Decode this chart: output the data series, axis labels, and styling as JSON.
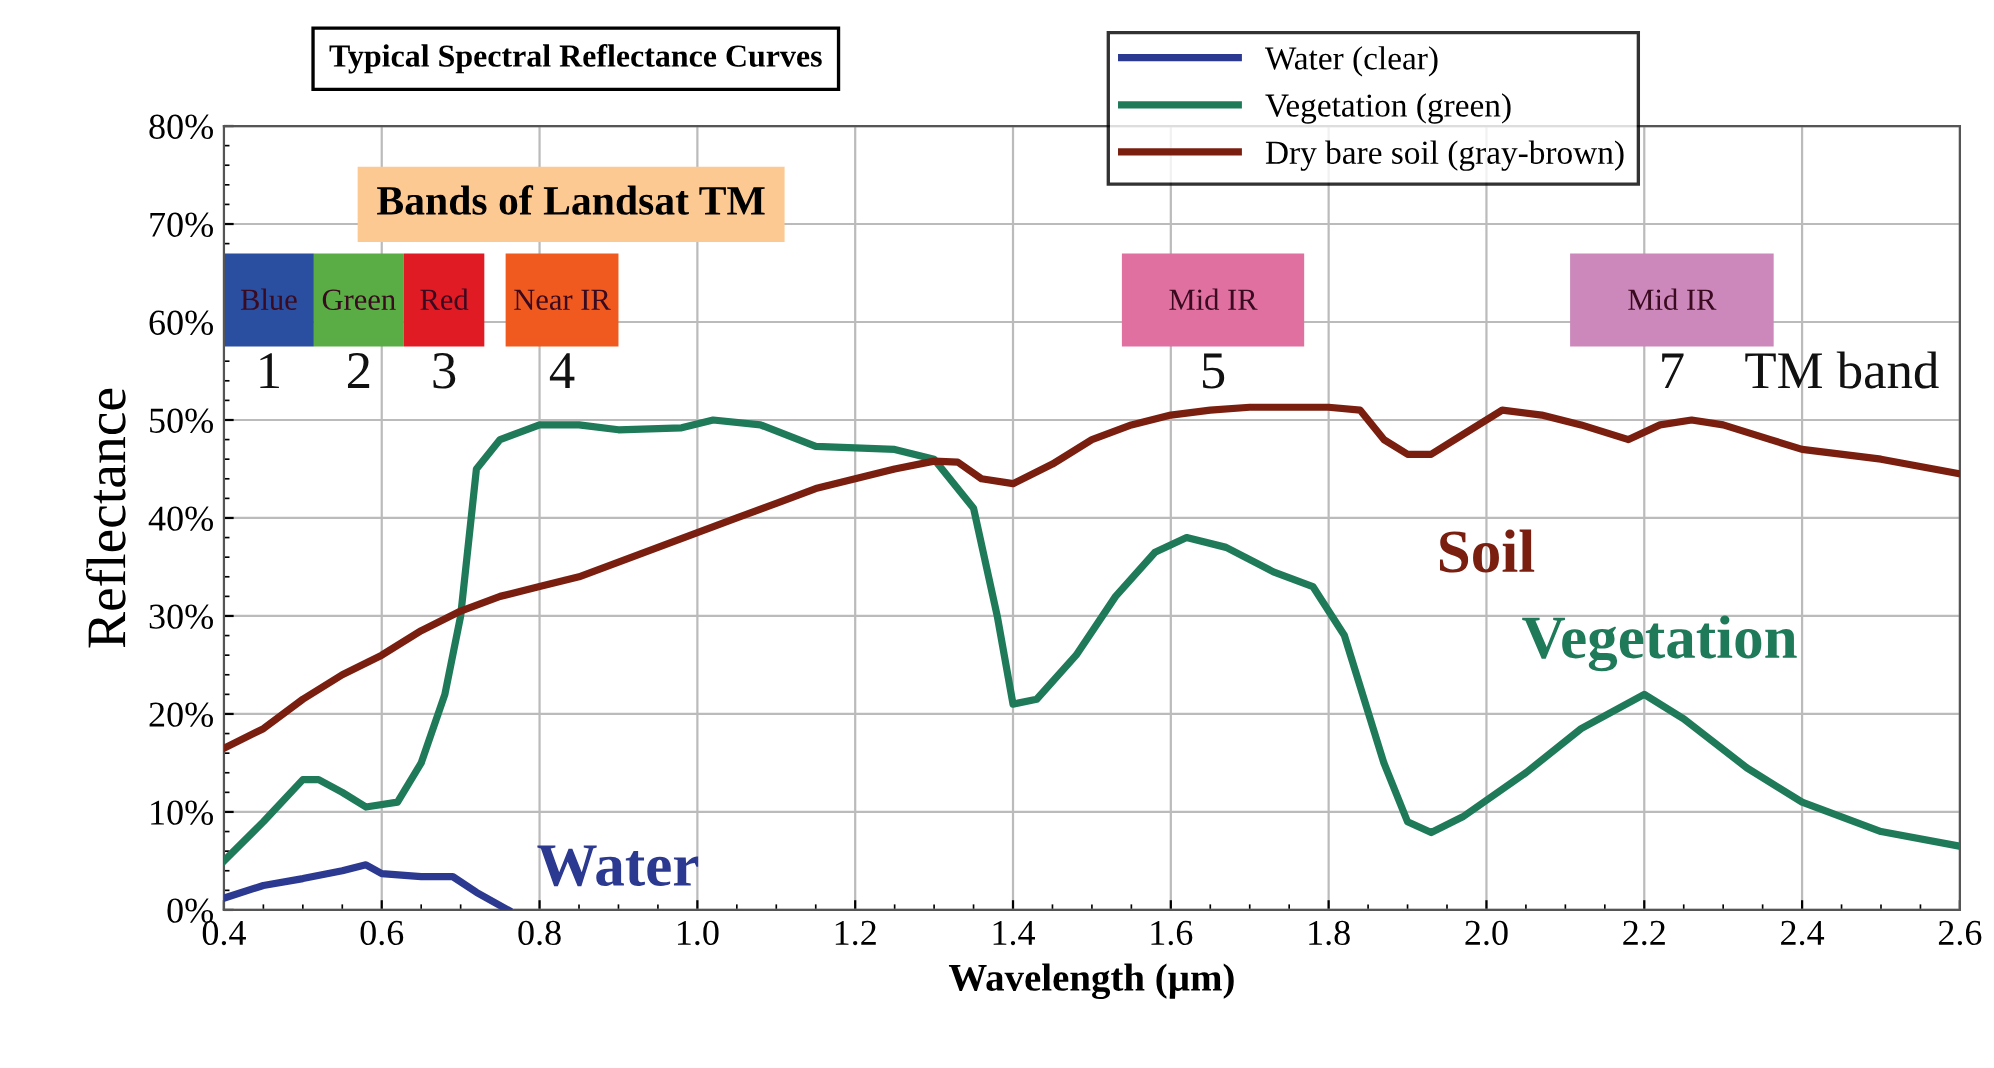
{
  "chart_data": {
    "type": "line",
    "title": "Typical Spectral Reflectance Curves",
    "xlabel": "Wavelength (µm)",
    "ylabel": "Reflectance",
    "xlim": [
      0.4,
      2.6
    ],
    "xticks": [
      {
        "value": 0.4,
        "label": "0.4"
      },
      {
        "value": 0.6,
        "label": "0.6"
      },
      {
        "value": 0.8,
        "label": "0.8"
      },
      {
        "value": 1.0,
        "label": "1.0"
      },
      {
        "value": 1.2,
        "label": "1.2"
      },
      {
        "value": 1.4,
        "label": "1.4"
      },
      {
        "value": 1.6,
        "label": "1.6"
      },
      {
        "value": 1.8,
        "label": "1.8"
      },
      {
        "value": 2.0,
        "label": "2.0"
      },
      {
        "value": 2.2,
        "label": "2.2"
      },
      {
        "value": 2.4,
        "label": "2.4"
      },
      {
        "value": 2.6,
        "label": "2.6"
      }
    ],
    "ylim": [
      0,
      80
    ],
    "yticks": [
      {
        "value": 0,
        "label": "0%"
      },
      {
        "value": 10,
        "label": "10%"
      },
      {
        "value": 20,
        "label": "20%"
      },
      {
        "value": 30,
        "label": "30%"
      },
      {
        "value": 40,
        "label": "40%"
      },
      {
        "value": 50,
        "label": "50%"
      },
      {
        "value": 60,
        "label": "60%"
      },
      {
        "value": 70,
        "label": "70%"
      },
      {
        "value": 80,
        "label": "80%"
      }
    ],
    "grid": true,
    "legend": "top right",
    "marker": "none",
    "line_style": "solid",
    "series": [
      {
        "name": "Water (clear)",
        "color": "#2b3990",
        "x": [
          0.4,
          0.45,
          0.5,
          0.55,
          0.58,
          0.6,
          0.65,
          0.69,
          0.72,
          0.76
        ],
        "values": [
          1.2,
          2.5,
          3.2,
          4.0,
          4.6,
          3.7,
          3.4,
          3.4,
          1.8,
          0
        ]
      },
      {
        "name": "Vegetation (green)",
        "color": "#1f7a5a",
        "x": [
          0.4,
          0.45,
          0.5,
          0.52,
          0.55,
          0.58,
          0.62,
          0.65,
          0.68,
          0.7,
          0.72,
          0.75,
          0.8,
          0.85,
          0.9,
          0.98,
          1.02,
          1.08,
          1.15,
          1.25,
          1.3,
          1.35,
          1.38,
          1.4,
          1.43,
          1.48,
          1.53,
          1.58,
          1.62,
          1.67,
          1.73,
          1.78,
          1.82,
          1.87,
          1.9,
          1.93,
          1.97,
          2.05,
          2.12,
          2.2,
          2.25,
          2.33,
          2.4,
          2.5,
          2.6
        ],
        "values": [
          5,
          9,
          13.3,
          13.3,
          12,
          10.5,
          11,
          15,
          22,
          30,
          45,
          48,
          49.5,
          49.5,
          49,
          49.2,
          50,
          49.5,
          47.3,
          47,
          46,
          41,
          30,
          21,
          21.5,
          26,
          32,
          36.5,
          38,
          37,
          34.5,
          33,
          28,
          15,
          9,
          7.9,
          9.5,
          14,
          18.5,
          22,
          19.5,
          14.5,
          11,
          8,
          6.5
        ]
      },
      {
        "name": "Dry bare soil (gray-brown)",
        "color": "#7a1f10",
        "x": [
          0.4,
          0.45,
          0.5,
          0.55,
          0.6,
          0.65,
          0.7,
          0.75,
          0.8,
          0.85,
          0.9,
          0.95,
          1.0,
          1.05,
          1.1,
          1.15,
          1.2,
          1.25,
          1.3,
          1.33,
          1.36,
          1.4,
          1.45,
          1.5,
          1.55,
          1.6,
          1.65,
          1.7,
          1.8,
          1.84,
          1.87,
          1.9,
          1.93,
          1.97,
          2.02,
          2.07,
          2.12,
          2.18,
          2.22,
          2.26,
          2.3,
          2.36,
          2.4,
          2.5,
          2.6
        ],
        "values": [
          16.5,
          18.5,
          21.5,
          24,
          26,
          28.5,
          30.5,
          32,
          33,
          34,
          35.5,
          37,
          38.5,
          40,
          41.5,
          43,
          44,
          45,
          45.8,
          45.7,
          44,
          43.5,
          45.5,
          48,
          49.5,
          50.5,
          51,
          51.3,
          51.3,
          51,
          48,
          46.5,
          46.5,
          48.5,
          51,
          50.5,
          49.5,
          48,
          49.5,
          50,
          49.5,
          48,
          47,
          46,
          44.5
        ]
      }
    ],
    "bands": [
      {
        "axis": "x",
        "from": 0.4,
        "to": 0.514,
        "label": "Blue",
        "color": "#2b4fa0"
      },
      {
        "axis": "x",
        "from": 0.514,
        "to": 0.628,
        "label": "Green",
        "color": "#5aad45"
      },
      {
        "axis": "x",
        "from": 0.628,
        "to": 0.73,
        "label": "Red",
        "color": "#e01b24"
      },
      {
        "axis": "x",
        "from": 0.757,
        "to": 0.9,
        "label": "Near IR",
        "color": "#f05a1e"
      },
      {
        "axis": "x",
        "from": 1.538,
        "to": 1.769,
        "label": "Mid IR",
        "color": "#e070a0"
      },
      {
        "axis": "x",
        "from": 2.106,
        "to": 2.364,
        "label": "Mid IR",
        "color": "#cc88bb"
      }
    ],
    "annotations": [
      "Water",
      "Vegetation",
      "Soil",
      "Bands of Landsat TM",
      "1",
      "2",
      "3",
      "4",
      "5",
      "7",
      "TM band"
    ]
  }
}
